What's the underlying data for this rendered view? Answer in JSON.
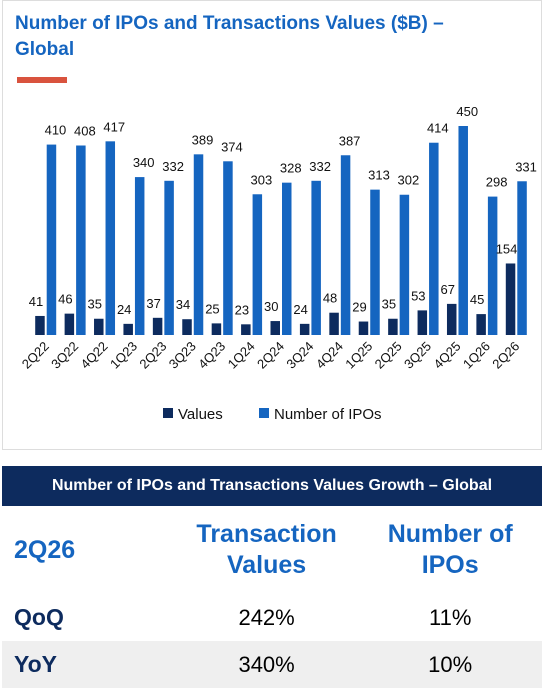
{
  "chart_data": {
    "type": "bar",
    "title": "Number of IPOs and Transactions Values ($B) – Global",
    "categories": [
      "2Q22",
      "3Q22",
      "4Q22",
      "1Q23",
      "2Q23",
      "3Q23",
      "4Q23",
      "1Q24",
      "2Q24",
      "3Q24",
      "4Q24",
      "1Q25",
      "2Q25",
      "3Q25",
      "4Q25",
      "1Q26",
      "2Q26"
    ],
    "series": [
      {
        "name": "Values",
        "color": "#0d2b5e",
        "values": [
          41,
          46,
          35,
          24,
          37,
          34,
          25,
          23,
          30,
          24,
          48,
          29,
          35,
          53,
          67,
          45,
          154
        ]
      },
      {
        "name": "Number of IPOs",
        "color": "#1565c0",
        "values": [
          410,
          408,
          417,
          340,
          332,
          389,
          374,
          303,
          328,
          332,
          387,
          313,
          302,
          414,
          450,
          298,
          331
        ]
      }
    ],
    "legend": "bottom"
  },
  "table": {
    "title": "Number of IPOs and Transactions Values Growth – Global",
    "header": [
      "2Q26",
      "Transaction Values",
      "Number of IPOs"
    ],
    "rows": [
      [
        "QoQ",
        "242%",
        "11%"
      ],
      [
        "YoY",
        "340%",
        "10%"
      ]
    ]
  }
}
